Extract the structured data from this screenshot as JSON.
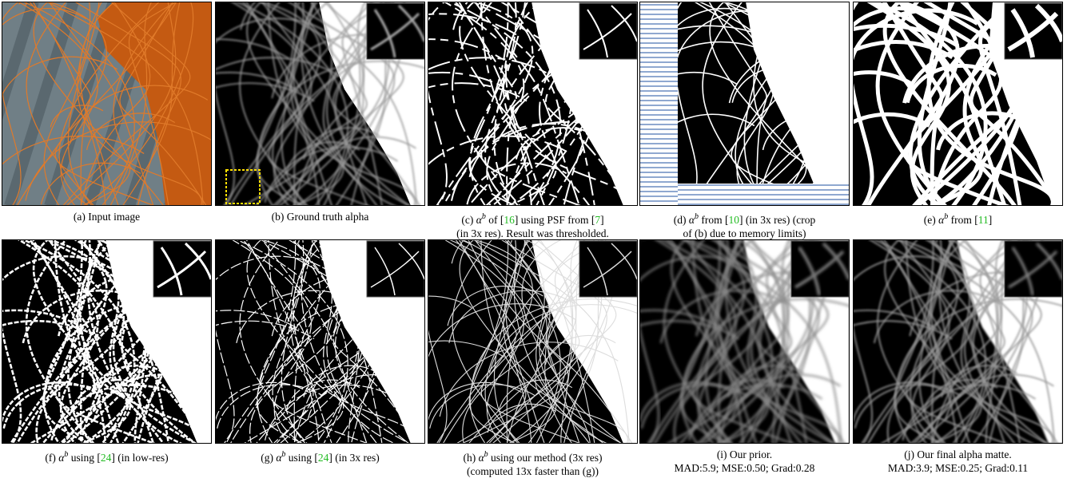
{
  "panels": [
    {
      "caption": [
        [
          {
            "t": "(a) Input image"
          }
        ]
      ]
    },
    {
      "caption": [
        [
          {
            "t": "(b) Ground truth alpha"
          }
        ]
      ]
    },
    {
      "caption": [
        [
          {
            "t": "(c) "
          },
          {
            "math": "α"
          },
          {
            "sup": "b"
          },
          {
            "t": " of ["
          },
          {
            "cite": "16"
          },
          {
            "t": "] using PSF from ["
          },
          {
            "cite": "7"
          },
          {
            "t": "]"
          }
        ],
        [
          {
            "t": "(in 3x res). Result was thresholded."
          }
        ]
      ]
    },
    {
      "caption": [
        [
          {
            "t": "(d) "
          },
          {
            "math": "α"
          },
          {
            "sup": "b"
          },
          {
            "t": " from ["
          },
          {
            "cite": "10"
          },
          {
            "t": "] (in 3x res) (crop"
          }
        ],
        [
          {
            "t": "of (b) due to memory limits)"
          }
        ]
      ]
    },
    {
      "caption": [
        [
          {
            "t": "(e) "
          },
          {
            "math": "α"
          },
          {
            "sup": "b"
          },
          {
            "t": " from ["
          },
          {
            "cite": "11"
          },
          {
            "t": "]"
          }
        ]
      ]
    },
    {
      "caption": [
        [
          {
            "t": "(f) "
          },
          {
            "math": "α"
          },
          {
            "sup": "b"
          },
          {
            "t": " using ["
          },
          {
            "cite": "24"
          },
          {
            "t": "] (in low-res)"
          }
        ]
      ]
    },
    {
      "caption": [
        [
          {
            "t": "(g) "
          },
          {
            "math": "α"
          },
          {
            "sup": "b"
          },
          {
            "t": " using ["
          },
          {
            "cite": "24"
          },
          {
            "t": "] (in 3x res)"
          }
        ]
      ]
    },
    {
      "caption": [
        [
          {
            "t": "(h) "
          },
          {
            "math": "α"
          },
          {
            "sup": "b"
          },
          {
            "t": " using our method (3x res)"
          }
        ],
        [
          {
            "t": "(computed 13x faster than (g))"
          }
        ]
      ]
    },
    {
      "caption": [
        [
          {
            "t": "(i) Our prior."
          }
        ],
        [
          {
            "t": "MAD:5.9; MSE:0.50; Grad:0.28"
          }
        ]
      ]
    },
    {
      "caption": [
        [
          {
            "t": "(j) Our final alpha matte."
          }
        ],
        [
          {
            "t": "MAD:3.9; MSE:0.25; Grad:0.11"
          }
        ]
      ]
    }
  ]
}
